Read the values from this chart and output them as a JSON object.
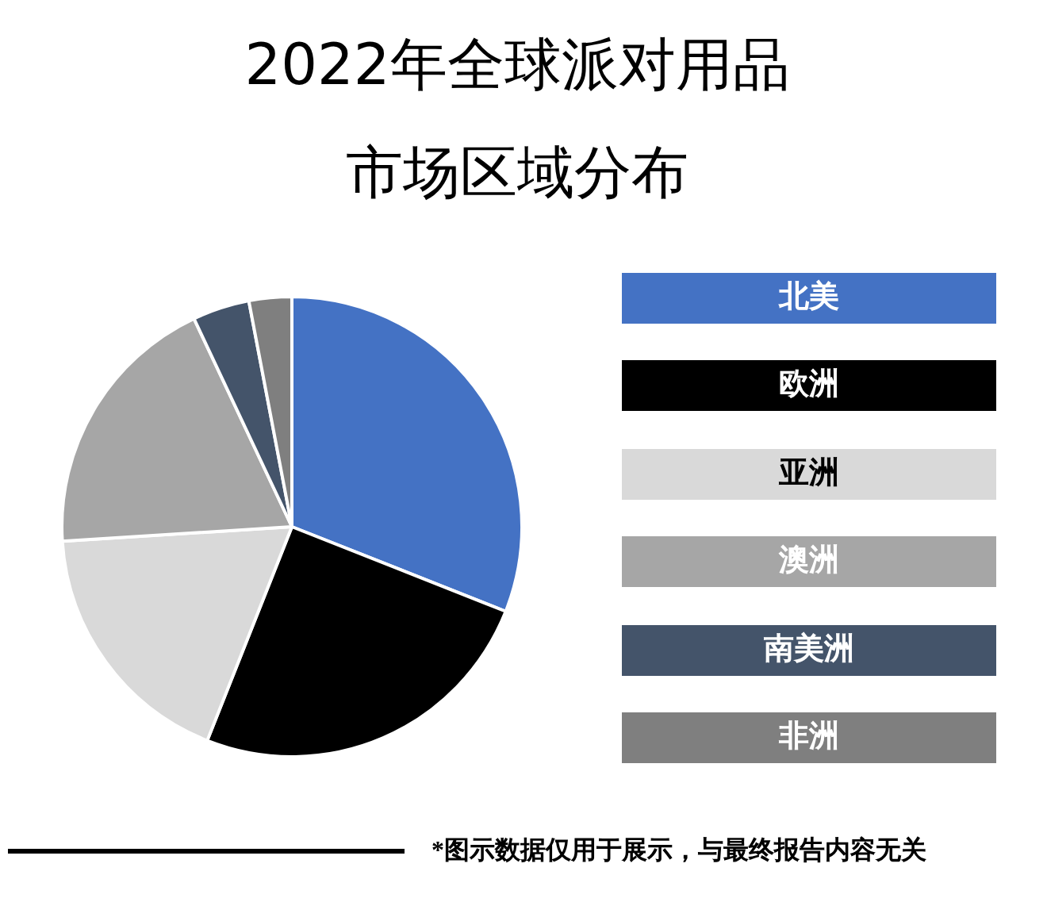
{
  "chart_data": {
    "type": "pie",
    "title": "2022年全球派对用品市场区域分布",
    "categories": [
      "北美",
      "欧洲",
      "亚洲",
      "澳洲",
      "南美洲",
      "非洲"
    ],
    "values": [
      31,
      25,
      18,
      19,
      4,
      3
    ],
    "colors": [
      "#4472c4",
      "#000000",
      "#d9d9d9",
      "#a6a6a6",
      "#44546a",
      "#7f7f7f"
    ],
    "legend": "right",
    "annotations": [
      "*图示数据仅用于展示，与最终报告内容无关"
    ]
  }
}
